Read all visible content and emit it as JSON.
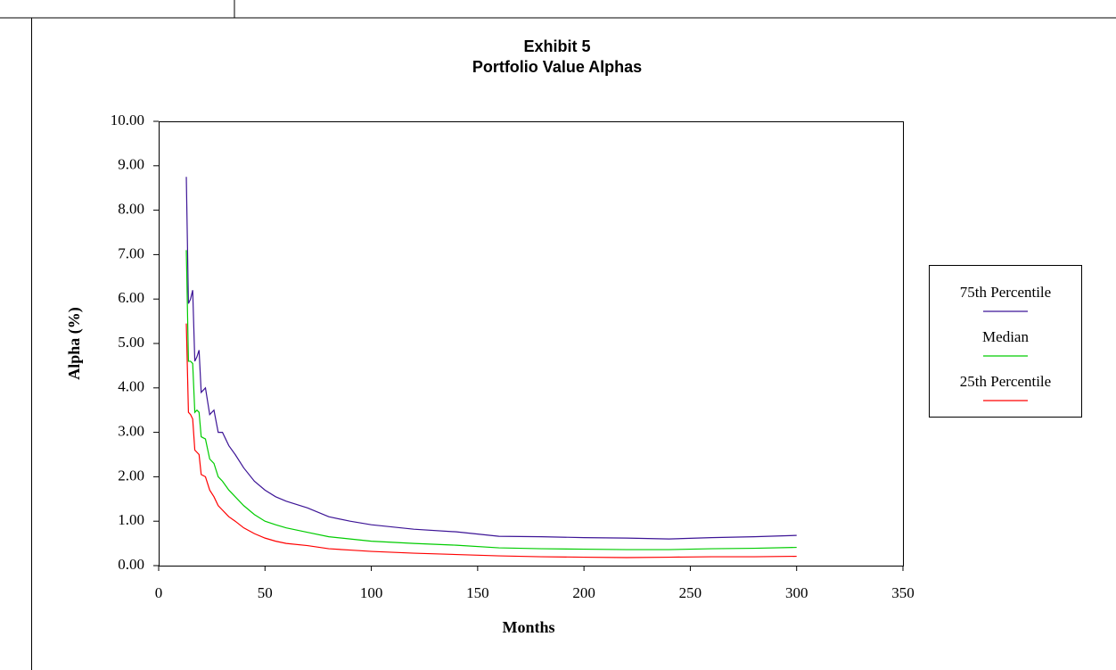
{
  "chart_data": {
    "type": "line",
    "title": "Exhibit 5",
    "subtitle": "Portfolio Value Alphas",
    "x_label": "Months",
    "y_label": "Alpha (%)",
    "x": [
      13,
      14,
      15,
      16,
      17,
      18,
      19,
      20,
      22,
      24,
      26,
      28,
      30,
      33,
      36,
      40,
      45,
      50,
      55,
      60,
      70,
      80,
      90,
      100,
      120,
      140,
      160,
      180,
      200,
      220,
      240,
      260,
      280,
      300
    ],
    "series": [
      {
        "name": "75th Percentile",
        "color": "#3c1496",
        "values": [
          8.75,
          5.9,
          6.0,
          6.2,
          4.6,
          4.7,
          4.85,
          3.9,
          4.0,
          3.4,
          3.5,
          3.0,
          3.0,
          2.7,
          2.5,
          2.2,
          1.9,
          1.7,
          1.55,
          1.45,
          1.3,
          1.1,
          1.0,
          0.92,
          0.82,
          0.76,
          0.66,
          0.65,
          0.63,
          0.62,
          0.6,
          0.63,
          0.65,
          0.68
        ]
      },
      {
        "name": "Median",
        "color": "#00cc00",
        "values": [
          7.1,
          4.6,
          4.6,
          4.55,
          3.45,
          3.5,
          3.45,
          2.9,
          2.85,
          2.4,
          2.3,
          2.0,
          1.9,
          1.7,
          1.55,
          1.35,
          1.15,
          1.0,
          0.92,
          0.85,
          0.75,
          0.65,
          0.6,
          0.55,
          0.5,
          0.46,
          0.4,
          0.38,
          0.37,
          0.36,
          0.36,
          0.38,
          0.39,
          0.41
        ]
      },
      {
        "name": "25th Percentile",
        "color": "#ff0000",
        "values": [
          5.45,
          3.45,
          3.4,
          3.3,
          2.6,
          2.55,
          2.5,
          2.05,
          2.0,
          1.7,
          1.55,
          1.35,
          1.25,
          1.1,
          1.0,
          0.85,
          0.72,
          0.62,
          0.55,
          0.5,
          0.45,
          0.38,
          0.35,
          0.32,
          0.28,
          0.25,
          0.22,
          0.2,
          0.19,
          0.18,
          0.19,
          0.2,
          0.2,
          0.21
        ]
      }
    ],
    "xlim": [
      0,
      350
    ],
    "xticks": [
      0,
      50,
      100,
      150,
      200,
      250,
      300,
      350
    ],
    "ylim": [
      0,
      10
    ],
    "yticks": [
      {
        "value": 0,
        "label": "0.00"
      },
      {
        "value": 1,
        "label": "1.00"
      },
      {
        "value": 2,
        "label": "2.00"
      },
      {
        "value": 3,
        "label": "3.00"
      },
      {
        "value": 4,
        "label": "4.00"
      },
      {
        "value": 5,
        "label": "5.00"
      },
      {
        "value": 6,
        "label": "6.00"
      },
      {
        "value": 7,
        "label": "7.00"
      },
      {
        "value": 8,
        "label": "8.00"
      },
      {
        "value": 9,
        "label": "9.00"
      },
      {
        "value": 10,
        "label": "10.00"
      }
    ],
    "legend": "right"
  }
}
